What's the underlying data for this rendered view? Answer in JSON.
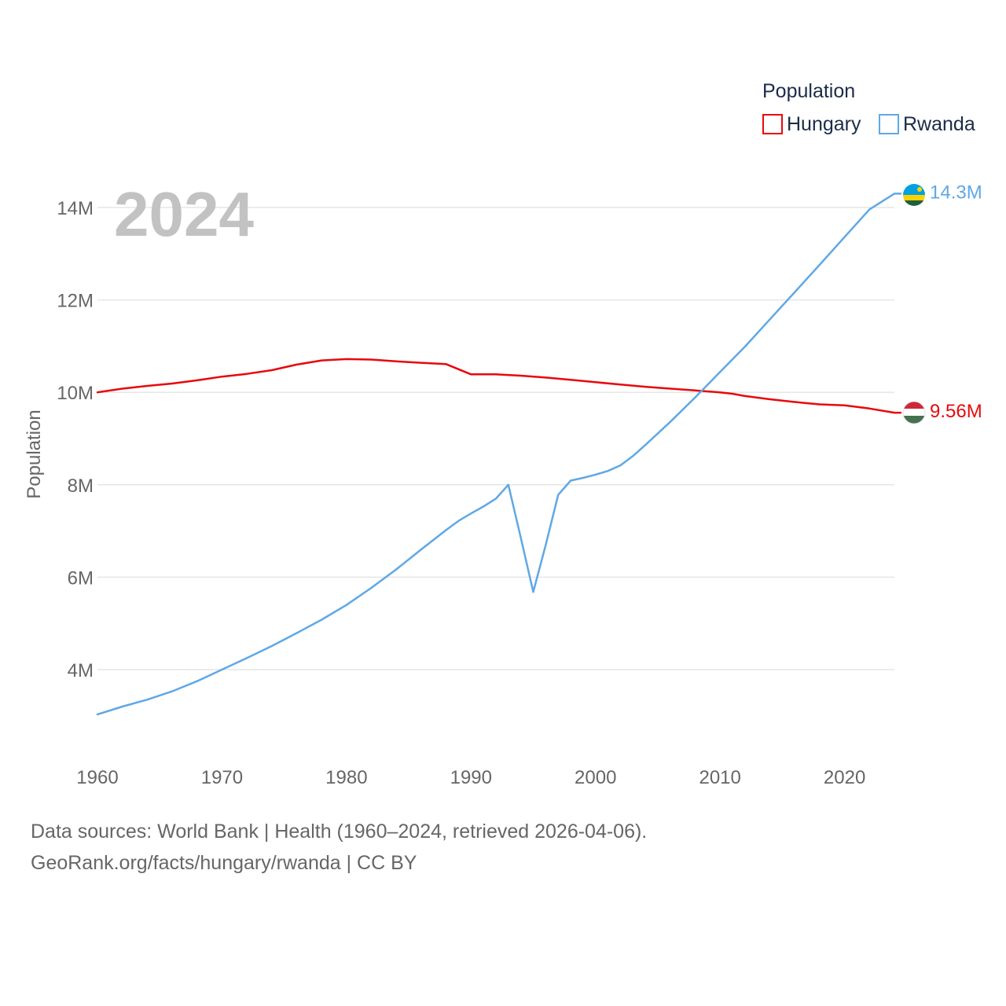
{
  "chart_data": {
    "type": "line",
    "title": "",
    "xlabel": "",
    "ylabel": "Population",
    "xlim": [
      1960,
      2024
    ],
    "ylim": [
      2500000,
      15000000
    ],
    "x_ticks": [
      1960,
      1970,
      1980,
      1990,
      2000,
      2010,
      2020
    ],
    "x_tick_labels": [
      "1960",
      "1970",
      "1980",
      "1990",
      "2000",
      "2010",
      "2020"
    ],
    "y_ticks": [
      4000000,
      6000000,
      8000000,
      10000000,
      12000000,
      14000000
    ],
    "y_tick_labels": [
      "4M",
      "6M",
      "8M",
      "10M",
      "12M",
      "14M"
    ],
    "year_label": "2024",
    "legend": {
      "title": "Population",
      "placement": "top-right",
      "entries": [
        "Hungary",
        "Rwanda"
      ]
    },
    "series": [
      {
        "name": "Hungary",
        "color": "#e8080c",
        "end_label": "9.56M",
        "flag_colors": [
          "#ce2939",
          "#ffffff",
          "#477050"
        ],
        "x": [
          1960,
          1962,
          1964,
          1966,
          1968,
          1970,
          1972,
          1974,
          1976,
          1978,
          1980,
          1982,
          1984,
          1986,
          1988,
          1990,
          1992,
          1994,
          1996,
          1998,
          2000,
          2002,
          2004,
          2006,
          2008,
          2010,
          2011,
          2012,
          2014,
          2016,
          2018,
          2020,
          2022,
          2024
        ],
        "values": [
          10000000,
          10080000,
          10140000,
          10190000,
          10260000,
          10340000,
          10400000,
          10480000,
          10600000,
          10690000,
          10720000,
          10710000,
          10670000,
          10640000,
          10610000,
          10390000,
          10390000,
          10360000,
          10320000,
          10270000,
          10220000,
          10170000,
          10120000,
          10080000,
          10040000,
          10000000,
          9970000,
          9920000,
          9850000,
          9790000,
          9740000,
          9720000,
          9650000,
          9560000
        ]
      },
      {
        "name": "Rwanda",
        "color": "#5fa8e6",
        "end_label": "14.3M",
        "flag_colors": [
          "#20603d",
          "#fad201",
          "#00a1de"
        ],
        "x": [
          1960,
          1962,
          1964,
          1966,
          1968,
          1970,
          1972,
          1974,
          1976,
          1978,
          1980,
          1982,
          1984,
          1986,
          1988,
          1989,
          1990,
          1991,
          1992,
          1993,
          1994,
          1995,
          1996,
          1997,
          1998,
          1999,
          2000,
          2001,
          2002,
          2003,
          2004,
          2006,
          2008,
          2010,
          2012,
          2014,
          2016,
          2018,
          2020,
          2022,
          2024
        ],
        "values": [
          3030000,
          3200000,
          3350000,
          3530000,
          3750000,
          4000000,
          4250000,
          4510000,
          4790000,
          5080000,
          5400000,
          5770000,
          6170000,
          6600000,
          7020000,
          7220000,
          7380000,
          7530000,
          7700000,
          8000000,
          6850000,
          5680000,
          6700000,
          7780000,
          8090000,
          8150000,
          8220000,
          8300000,
          8420000,
          8620000,
          8860000,
          9360000,
          9890000,
          10440000,
          10990000,
          11580000,
          12170000,
          12760000,
          13360000,
          13960000,
          14300000
        ]
      }
    ]
  },
  "footer": {
    "line1": "Data sources: World Bank | Health (1960–2024, retrieved 2026-04-06).",
    "line2": "GeoRank.org/facts/hungary/rwanda | CC BY"
  }
}
